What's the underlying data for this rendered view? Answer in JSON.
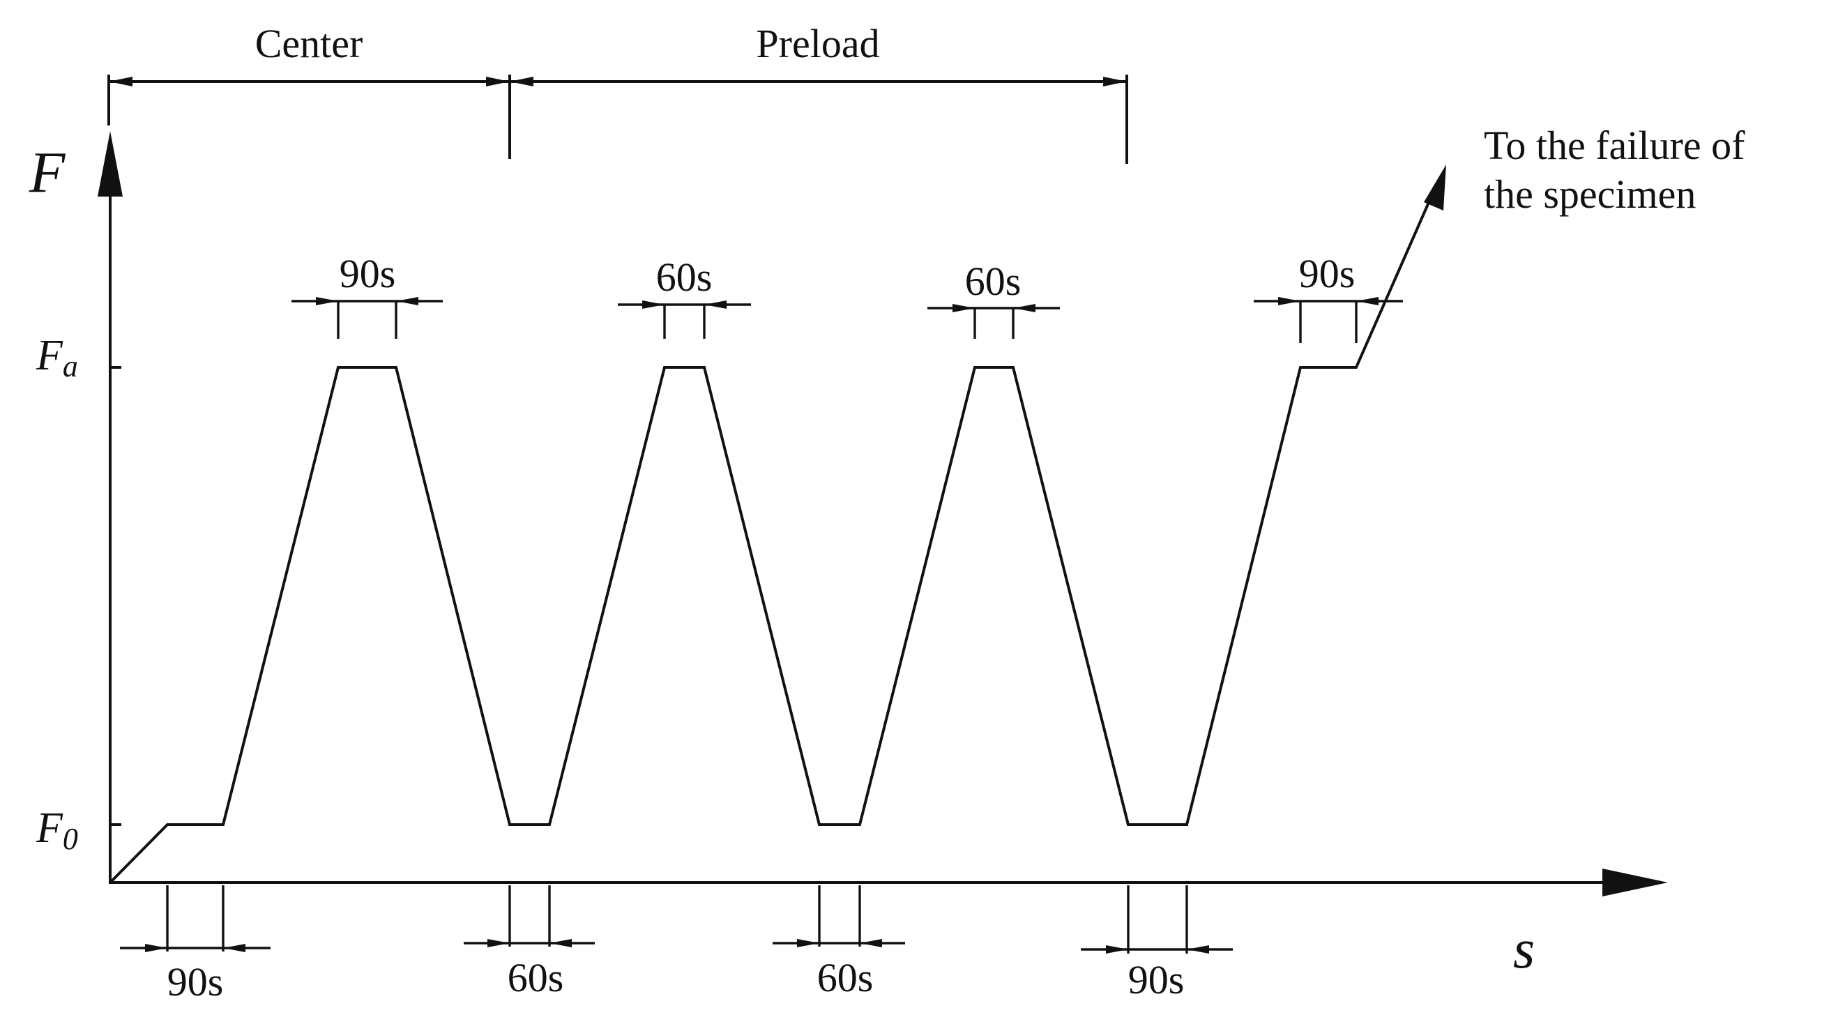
{
  "phases": {
    "center": "Center",
    "preload": "Preload"
  },
  "axes": {
    "y_label": "F",
    "x_label": "s"
  },
  "levels": {
    "fa_main": "F",
    "fa_sub": "a",
    "f0_main": "F",
    "f0_sub": "0"
  },
  "note": {
    "line1": "To the failure of",
    "line2": "the specimen"
  },
  "durations": {
    "top": [
      "90s",
      "60s",
      "60s",
      "90s"
    ],
    "bottom": [
      "90s",
      "60s",
      "60s",
      "90s"
    ]
  }
}
